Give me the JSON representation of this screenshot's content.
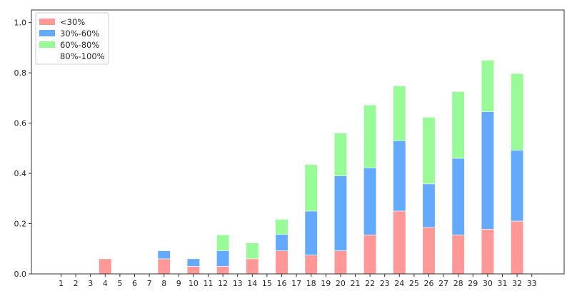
{
  "chart_data": {
    "type": "bar",
    "stacked": true,
    "categories": [
      "1",
      "2",
      "3",
      "4",
      "5",
      "6",
      "7",
      "8",
      "9",
      "10",
      "11",
      "12",
      "13",
      "14",
      "15",
      "16",
      "17",
      "18",
      "19",
      "20",
      "21",
      "22",
      "23",
      "24",
      "25",
      "26",
      "27",
      "28",
      "29",
      "30",
      "31",
      "32",
      "33"
    ],
    "series": [
      {
        "name": "<30%",
        "color": "#ff9896",
        "values": [
          0,
          0,
          0,
          0.06,
          0,
          0,
          0,
          0.06,
          0,
          0.03,
          0,
          0.03,
          0,
          0.06,
          0,
          0.092,
          0,
          0.075,
          0,
          0.092,
          0,
          0.155,
          0,
          0.25,
          0,
          0.185,
          0,
          0.155,
          0,
          0.178,
          0,
          0.21,
          0
        ]
      },
      {
        "name": "30%-60%",
        "color": "#63aaff",
        "values": [
          0,
          0,
          0,
          0,
          0,
          0,
          0,
          0.032,
          0,
          0.03,
          0,
          0.062,
          0,
          0,
          0,
          0.065,
          0,
          0.175,
          0,
          0.298,
          0,
          0.267,
          0,
          0.28,
          0,
          0.173,
          0,
          0.305,
          0,
          0.467,
          0,
          0.282,
          0
        ]
      },
      {
        "name": "60%-80%",
        "color": "#98fb98",
        "values": [
          0,
          0,
          0,
          0,
          0,
          0,
          0,
          0,
          0,
          0,
          0,
          0.063,
          0,
          0.063,
          0,
          0.06,
          0,
          0.185,
          0,
          0.17,
          0,
          0.25,
          0,
          0.218,
          0,
          0.265,
          0,
          0.265,
          0,
          0.205,
          0,
          0.305,
          0
        ]
      },
      {
        "name": "80%-100%",
        "color": "#ffffff",
        "values": [
          0,
          0,
          0,
          0,
          0,
          0,
          0,
          0,
          0,
          0,
          0,
          0,
          0,
          0,
          0,
          0,
          0,
          0,
          0,
          0,
          0,
          0,
          0,
          0,
          0,
          0,
          0,
          0,
          0,
          0,
          0,
          0,
          0
        ]
      }
    ],
    "yticks": [
      "0.0",
      "0.2",
      "0.4",
      "0.6",
      "0.8",
      "1.0"
    ],
    "ylim": [
      0,
      1.05
    ],
    "legend_position": "top-left",
    "grid": false
  }
}
